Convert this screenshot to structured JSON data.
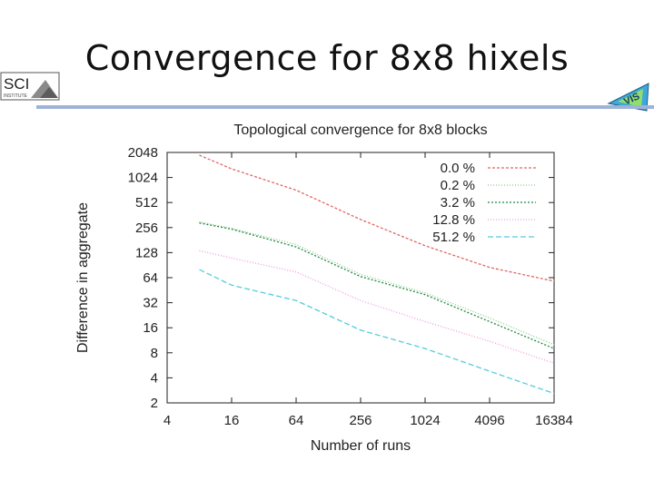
{
  "slide": {
    "title": "Convergence for 8x8 hixels",
    "logo_left_text": "SCI",
    "logo_left_subtext": "INSTITUTE",
    "logo_right_text": "VIS"
  },
  "chart_data": {
    "type": "line",
    "title": "Topological convergence for 8x8 blocks",
    "xlabel": "Number of runs",
    "ylabel": "Difference in aggregate",
    "x_scale": "log2",
    "y_scale": "log2",
    "xlim": [
      4,
      16384
    ],
    "ylim": [
      2,
      2048
    ],
    "x_ticks": [
      4,
      16,
      64,
      256,
      1024,
      4096,
      16384
    ],
    "y_ticks": [
      2,
      4,
      8,
      16,
      32,
      64,
      128,
      256,
      512,
      1024,
      2048
    ],
    "grid": false,
    "legend_position": "top-right",
    "series": [
      {
        "name": "0.0 %",
        "color": "#e06666",
        "x": [
          8,
          16,
          64,
          256,
          1024,
          4096,
          16384
        ],
        "values": [
          1900,
          1300,
          720,
          320,
          155,
          85,
          58
        ]
      },
      {
        "name": "0.2 %",
        "color": "#88cc88",
        "x": [
          8,
          16,
          64,
          256,
          1024,
          4096,
          16384
        ],
        "values": [
          300,
          250,
          160,
          70,
          42,
          21,
          10
        ]
      },
      {
        "name": "3.2 %",
        "color": "#228844",
        "x": [
          8,
          16,
          64,
          256,
          1024,
          4096,
          16384
        ],
        "values": [
          290,
          245,
          150,
          66,
          40,
          19,
          9
        ]
      },
      {
        "name": "12.8 %",
        "color": "#ee99dd",
        "x": [
          8,
          16,
          64,
          256,
          1024,
          4096,
          16384
        ],
        "values": [
          135,
          110,
          75,
          34,
          19,
          11,
          6
        ]
      },
      {
        "name": "51.2 %",
        "color": "#55ccdd",
        "x": [
          8,
          16,
          64,
          256,
          1024,
          4096,
          16384
        ],
        "values": [
          80,
          52,
          34,
          15,
          9,
          4.8,
          2.6
        ]
      }
    ]
  }
}
